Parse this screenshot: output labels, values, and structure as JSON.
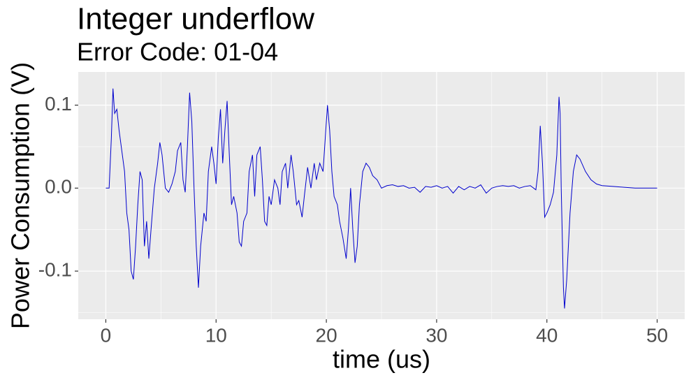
{
  "chart_data": {
    "type": "line",
    "title": "Integer underflow",
    "subtitle": "Error Code: 01-04",
    "x_label": "time (us)",
    "y_label": "Power Consumption (V)",
    "color": "#0000CD",
    "x": [
      0,
      0.3,
      0.5,
      0.65,
      0.8,
      1.0,
      1.2,
      1.5,
      1.7,
      1.9,
      2.1,
      2.3,
      2.5,
      2.7,
      2.9,
      3.1,
      3.3,
      3.5,
      3.7,
      3.9,
      4.1,
      4.4,
      4.7,
      4.9,
      5.1,
      5.4,
      5.7,
      6.0,
      6.3,
      6.5,
      6.8,
      7.0,
      7.2,
      7.4,
      7.6,
      7.8,
      8.0,
      8.2,
      8.4,
      8.6,
      8.9,
      9.1,
      9.3,
      9.6,
      9.8,
      10.0,
      10.2,
      10.4,
      10.6,
      10.8,
      11.0,
      11.2,
      11.4,
      11.6,
      11.9,
      12.1,
      12.3,
      12.5,
      12.8,
      13.0,
      13.3,
      13.5,
      13.7,
      14.0,
      14.2,
      14.4,
      14.6,
      14.8,
      15.0,
      15.3,
      15.6,
      15.8,
      16.0,
      16.3,
      16.5,
      16.8,
      17.0,
      17.3,
      17.5,
      17.8,
      18.0,
      18.3,
      18.6,
      18.9,
      19.1,
      19.4,
      19.7,
      19.9,
      20.1,
      20.3,
      20.5,
      20.7,
      21.0,
      21.2,
      21.5,
      21.8,
      22.0,
      22.2,
      22.4,
      22.6,
      22.8,
      23.0,
      23.3,
      23.6,
      23.9,
      24.2,
      24.6,
      25.0,
      25.5,
      26,
      26.5,
      27,
      27.5,
      28,
      28.5,
      29,
      29.5,
      30,
      30.5,
      31,
      31.5,
      32,
      32.5,
      33,
      33.5,
      34,
      34.5,
      35,
      35.5,
      36,
      36.5,
      37,
      37.5,
      38,
      38.5,
      39,
      39.2,
      39.4,
      39.6,
      39.8,
      40.0,
      40.3,
      40.6,
      40.9,
      41.1,
      41.2,
      41.3,
      41.5,
      41.6,
      41.8,
      42.1,
      42.4,
      42.7,
      43.0,
      43.5,
      44.0,
      44.5,
      45,
      46,
      47,
      48,
      49,
      50
    ],
    "values": [
      0,
      0,
      0.06,
      0.12,
      0.09,
      0.095,
      0.07,
      0.04,
      0.02,
      -0.03,
      -0.05,
      -0.1,
      -0.11,
      -0.07,
      -0.02,
      0.02,
      0.01,
      -0.07,
      -0.04,
      -0.085,
      -0.05,
      0.0,
      0.03,
      0.055,
      0.04,
      0.0,
      -0.005,
      0.005,
      0.02,
      0.045,
      0.055,
      0.01,
      -0.005,
      0.05,
      0.115,
      0.08,
      0.0,
      -0.07,
      -0.12,
      -0.07,
      -0.03,
      -0.04,
      0.02,
      0.05,
      0.03,
      0.005,
      0.06,
      0.095,
      0.03,
      0.07,
      0.105,
      0.04,
      -0.02,
      -0.01,
      -0.03,
      -0.065,
      -0.07,
      -0.04,
      -0.03,
      0.02,
      0.04,
      -0.01,
      0.04,
      0.05,
      0.01,
      -0.04,
      -0.045,
      -0.01,
      -0.02,
      0.01,
      0.0,
      -0.02,
      0.02,
      0.03,
      0.0,
      0.04,
      0.02,
      -0.02,
      -0.015,
      -0.035,
      -0.01,
      0.025,
      0.0,
      0.03,
      0.01,
      0.03,
      0.02,
      0.06,
      0.1,
      0.07,
      0.02,
      -0.01,
      -0.02,
      -0.04,
      -0.06,
      -0.085,
      -0.05,
      0.0,
      -0.05,
      -0.09,
      -0.07,
      -0.02,
      0.02,
      0.03,
      0.025,
      0.015,
      0.01,
      0.0,
      0.003,
      0.004,
      0.002,
      0.003,
      0.0,
      0.001,
      -0.005,
      0.002,
      0.001,
      0.003,
      0.0,
      0.002,
      -0.006,
      0.002,
      -0.002,
      0.002,
      0.0,
      0.004,
      -0.006,
      0.0,
      0.002,
      0.003,
      0.002,
      0.003,
      0.0,
      0.002,
      0.003,
      -0.002,
      0.02,
      0.075,
      0.03,
      -0.035,
      -0.03,
      -0.02,
      -0.005,
      0.04,
      0.11,
      0.09,
      0.0,
      -0.12,
      -0.145,
      -0.11,
      -0.03,
      0.02,
      0.04,
      0.035,
      0.02,
      0.01,
      0.005,
      0.003,
      0.002,
      0.001,
      0.0,
      0.0,
      0.0
    ],
    "xlim": [
      -2.5,
      52.5
    ],
    "ylim": [
      -0.158,
      0.14
    ],
    "xticks": [
      0,
      10,
      20,
      30,
      40,
      50
    ],
    "yticks": [
      {
        "value": -0.1,
        "label": "-0.1"
      },
      {
        "value": 0,
        "label": "0.0"
      },
      0.1
    ],
    "xminor": [
      5,
      15,
      25,
      35,
      45
    ],
    "yminor": [
      -0.15,
      -0.05,
      0.05
    ],
    "grid": true
  }
}
